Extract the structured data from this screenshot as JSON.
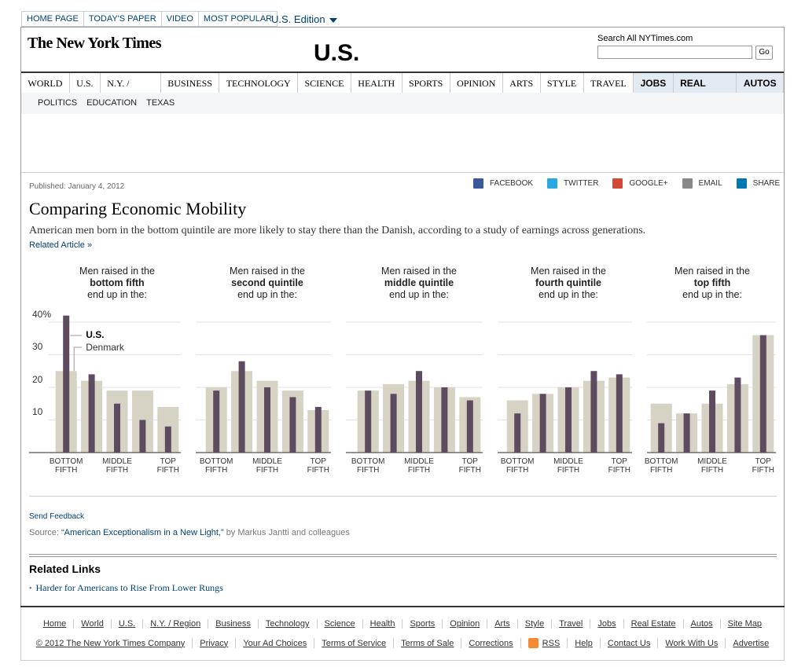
{
  "top_nav": [
    "HOME PAGE",
    "TODAY'S PAPER",
    "VIDEO",
    "MOST POPULAR"
  ],
  "edition": "U.S. Edition",
  "logo": "The New York Times",
  "section_title": "U.S.",
  "search": {
    "label": "Search All NYTimes.com",
    "button": "Go"
  },
  "sections": [
    "WORLD",
    "U.S.",
    "N.Y. / REGION",
    "BUSINESS",
    "TECHNOLOGY",
    "SCIENCE",
    "HEALTH",
    "SPORTS",
    "OPINION",
    "ARTS",
    "STYLE",
    "TRAVEL",
    "JOBS",
    "REAL ESTATE",
    "AUTOS"
  ],
  "subsections": [
    "POLITICS",
    "EDUCATION",
    "TEXAS"
  ],
  "article": {
    "published": "Published: January 4, 2012",
    "share": [
      "FACEBOOK",
      "TWITTER",
      "GOOGLE+",
      "EMAIL",
      "SHARE"
    ],
    "headline": "Comparing Economic Mobility",
    "summary": "American men born in the bottom quintile are more likely to stay there than the Danish, according to a study of earnings across generations.",
    "related": "Related Article »"
  },
  "chart_data": [
    {
      "type": "bar",
      "title": {
        "lead": "Men raised in the",
        "group": "bottom fifth",
        "tail": "end up in the:"
      },
      "categories": [
        "BOTTOM FIFTH",
        null,
        "MIDDLE FIFTH",
        null,
        "TOP FIFTH"
      ],
      "series": [
        {
          "name": "Denmark",
          "color": "#d6d3c4",
          "values": [
            25,
            22,
            19,
            19,
            14
          ]
        },
        {
          "name": "U.S.",
          "color": "#5e4b60",
          "values": [
            42,
            24,
            15,
            10,
            8
          ]
        }
      ],
      "ylim": [
        0,
        43
      ],
      "yticks": [
        {
          "value": 40,
          "label": "40%"
        },
        30,
        20,
        10
      ],
      "tick_labels": true,
      "grid": true,
      "legend": "annotated"
    },
    {
      "type": "bar",
      "title": {
        "lead": "Men raised in the",
        "group": "second quintile",
        "tail": "end up in the:"
      },
      "categories": [
        "BOTTOM FIFTH",
        null,
        "MIDDLE FIFTH",
        null,
        "TOP FIFTH"
      ],
      "series": [
        {
          "color": "#d6d3c4",
          "values": [
            20,
            25,
            22,
            19,
            13
          ]
        },
        {
          "color": "#5e4b60",
          "values": [
            19,
            28,
            20,
            17,
            14
          ]
        }
      ],
      "ylim": [
        0,
        43
      ],
      "yticks": [
        40,
        30,
        20,
        10
      ],
      "grid": true
    },
    {
      "type": "bar",
      "title": {
        "lead": "Men raised in the",
        "group": "middle quintile",
        "tail": "end up in the:"
      },
      "categories": [
        "BOTTOM FIFTH",
        null,
        "MIDDLE FIFTH",
        null,
        "TOP FIFTH"
      ],
      "series": [
        {
          "color": "#d6d3c4",
          "values": [
            19,
            21,
            22,
            20,
            17
          ]
        },
        {
          "color": "#5e4b60",
          "values": [
            19,
            18,
            25,
            20,
            16
          ]
        }
      ],
      "ylim": [
        0,
        43
      ],
      "yticks": [
        40,
        30,
        20,
        10
      ],
      "grid": true
    },
    {
      "type": "bar",
      "title": {
        "lead": "Men raised in the",
        "group": "fourth quintile",
        "tail": "end up in the:"
      },
      "categories": [
        "BOTTOM FIFTH",
        null,
        "MIDDLE FIFTH",
        null,
        "TOP FIFTH"
      ],
      "series": [
        {
          "color": "#d6d3c4",
          "values": [
            16,
            18,
            20,
            22,
            23
          ]
        },
        {
          "color": "#5e4b60",
          "values": [
            12,
            18,
            20,
            25,
            24
          ]
        }
      ],
      "ylim": [
        0,
        43
      ],
      "yticks": [
        40,
        30,
        20,
        10
      ],
      "grid": true
    },
    {
      "type": "bar",
      "title": {
        "lead": "Men raised in the",
        "group": "top fifth",
        "tail": "end up in the:"
      },
      "categories": [
        "BOTTOM FIFTH",
        null,
        "MIDDLE FIFTH",
        null,
        "TOP FIFTH"
      ],
      "series": [
        {
          "color": "#d6d3c4",
          "values": [
            15,
            12,
            15,
            21,
            36
          ]
        },
        {
          "color": "#5e4b60",
          "values": [
            9,
            12,
            19,
            23,
            36
          ]
        }
      ],
      "ylim": [
        0,
        43
      ],
      "yticks": [
        40,
        30,
        20,
        10
      ],
      "grid": true
    }
  ],
  "feedback": "Send Feedback",
  "source": {
    "prefix": "Source:",
    "link": "“American Exceptionalism in a New Light,”",
    "suffix": "by Markus Jantti and colleagues"
  },
  "related_links": {
    "title": "Related Links",
    "items": [
      "Harder for Americans to Rise From Lower Rungs"
    ]
  },
  "footer": {
    "links": [
      "Home",
      "World",
      "U.S.",
      "N.Y. / Region",
      "Business",
      "Technology",
      "Science",
      "Health",
      "Sports",
      "Opinion",
      "Arts",
      "Style",
      "Travel",
      "Jobs",
      "Real Estate",
      "Autos",
      "Site Map"
    ],
    "bottom": [
      "© 2012 The New York Times Company",
      "Privacy",
      "Your Ad Choices",
      "Terms of Service",
      "Terms of Sale",
      "Corrections",
      "RSS",
      "Help",
      "Contact Us",
      "Work With Us",
      "Advertise"
    ]
  }
}
